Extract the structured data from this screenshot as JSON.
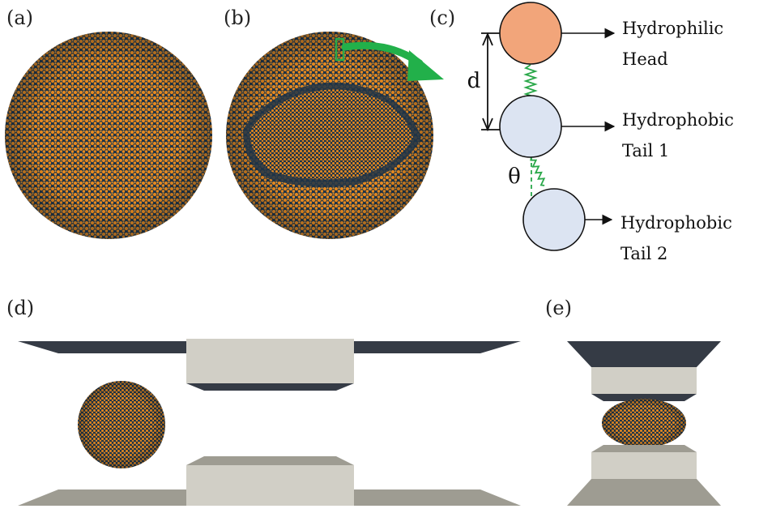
{
  "panels": {
    "a": "(a)",
    "b": "(b)",
    "c": "(c)",
    "d": "(d)",
    "e": "(e)"
  },
  "model": {
    "head_label_line1": "Hydrophilic",
    "head_label_line2": "Head",
    "tail1_label_line1": "Hydrophobic",
    "tail1_label_line2": "Tail 1",
    "tail2_label_line1": "Hydrophobic",
    "tail2_label_line2": "Tail 2",
    "distance_symbol": "d",
    "angle_symbol": "θ"
  },
  "colors": {
    "head_bead": "#f2a57a",
    "tail_bead": "#dce4f2",
    "vesicle_orange": "#e6891f",
    "vesicle_dark": "#1e3448",
    "spring": "#2aa84a",
    "arrow_green": "#22b04a",
    "plate_light": "#d1cfc6",
    "plate_dark": "#353b45",
    "plate_grey": "#9e9c92"
  }
}
